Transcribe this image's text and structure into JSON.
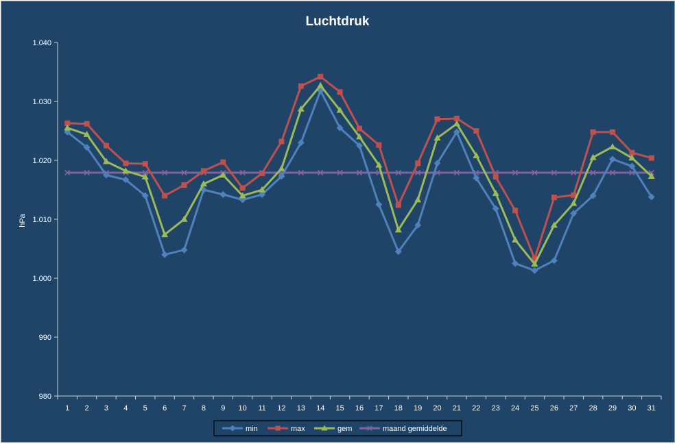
{
  "chart_data": {
    "type": "line",
    "title": "Luchtdruk",
    "xlabel": "",
    "ylabel": "hPa",
    "ylim": [
      980,
      1040
    ],
    "yticks": [
      980,
      990,
      1000,
      1010,
      1020,
      1030,
      1040
    ],
    "ytick_labels": [
      "980",
      "990",
      "1.000",
      "1.010",
      "1.020",
      "1.030",
      "1.040"
    ],
    "categories": [
      "1",
      "2",
      "3",
      "4",
      "5",
      "6",
      "7",
      "8",
      "9",
      "10",
      "11",
      "12",
      "13",
      "14",
      "15",
      "16",
      "17",
      "18",
      "19",
      "20",
      "21",
      "22",
      "23",
      "24",
      "25",
      "26",
      "27",
      "28",
      "29",
      "30",
      "31"
    ],
    "grid": false,
    "legend_position": "bottom",
    "series": [
      {
        "name": "min",
        "color": "#4F81BD",
        "marker": "diamond",
        "values": [
          1024.8,
          1022.2,
          1017.5,
          1016.7,
          1014.0,
          1004.0,
          1004.8,
          1015.0,
          1014.2,
          1013.3,
          1014.2,
          1017.3,
          1023.0,
          1031.8,
          1025.5,
          1022.5,
          1012.5,
          1004.5,
          1009.0,
          1019.5,
          1024.8,
          1017.0,
          1011.8,
          1002.5,
          1001.3,
          1003.0,
          1011.0,
          1014.0,
          1020.2,
          1019.0,
          1013.8
        ]
      },
      {
        "name": "max",
        "color": "#C0504D",
        "marker": "square",
        "values": [
          1026.3,
          1026.2,
          1022.5,
          1019.5,
          1019.4,
          1014.0,
          1015.8,
          1018.2,
          1019.7,
          1015.3,
          1017.8,
          1023.2,
          1032.6,
          1034.2,
          1031.6,
          1025.4,
          1022.6,
          1012.4,
          1019.5,
          1027.0,
          1027.1,
          1025.0,
          1017.2,
          1011.5,
          1003.3,
          1013.7,
          1014.1,
          1024.8,
          1024.8,
          1021.3,
          1020.4
        ]
      },
      {
        "name": "gem",
        "color": "#9BBB59",
        "marker": "triangle",
        "values": [
          1025.5,
          1024.4,
          1019.8,
          1018.2,
          1017.2,
          1007.4,
          1010.0,
          1016.0,
          1017.5,
          1014.0,
          1015.0,
          1018.6,
          1028.7,
          1032.7,
          1028.5,
          1024.0,
          1019.2,
          1008.2,
          1013.3,
          1023.8,
          1026.2,
          1020.8,
          1014.4,
          1006.5,
          1002.4,
          1009.0,
          1012.7,
          1020.5,
          1022.3,
          1020.4,
          1017.3
        ]
      },
      {
        "name": "maand gemiddelde",
        "color": "#8064A2",
        "marker": "x",
        "values": [
          1017.9,
          1017.9,
          1017.9,
          1017.9,
          1017.9,
          1017.9,
          1017.9,
          1017.9,
          1017.9,
          1017.9,
          1017.9,
          1017.9,
          1017.9,
          1017.9,
          1017.9,
          1017.9,
          1017.9,
          1017.9,
          1017.9,
          1017.9,
          1017.9,
          1017.9,
          1017.9,
          1017.9,
          1017.9,
          1017.9,
          1017.9,
          1017.9,
          1017.9,
          1017.9,
          1017.9
        ]
      }
    ]
  }
}
